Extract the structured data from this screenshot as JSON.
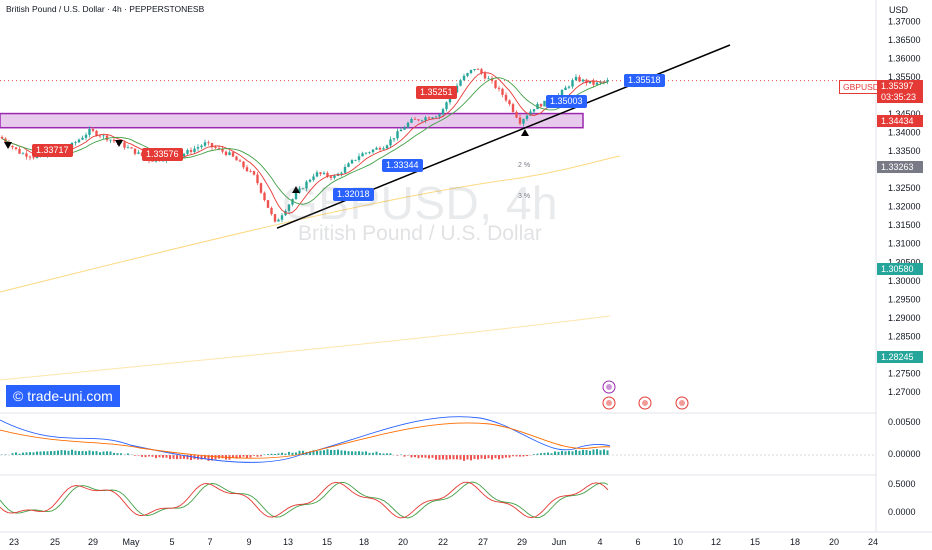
{
  "header": {
    "title": "British Pound / U.S. Dollar · 4h · PEPPERSTONESB",
    "currency": "USD"
  },
  "watermark": {
    "symbol": "GBPUSD, 4h",
    "name": "British Pound / U.S. Dollar"
  },
  "brand": "© trade-uni.com",
  "colors": {
    "up": "#26a69a",
    "down": "#ef5350",
    "accent": "#2962ff",
    "zone": "#9c27b0",
    "ma": "#fbc02d"
  },
  "chart_data": {
    "type": "candlestick",
    "price_axis": {
      "ticks": [
        "1.37000",
        "1.36500",
        "1.36000",
        "1.35500",
        "1.35000",
        "1.34500",
        "1.34000",
        "1.33500",
        "1.33000",
        "1.32500",
        "1.32000",
        "1.31500",
        "1.31000",
        "1.30500",
        "1.30000",
        "1.29500",
        "1.29000",
        "1.28500",
        "1.28000",
        "1.27500",
        "1.27000"
      ],
      "range": [
        1.2665,
        1.3725
      ]
    },
    "price_tags": [
      {
        "symbol": "GBPUSD",
        "price": "1.35397",
        "countdown": "03:35:23",
        "color": "#e53935"
      },
      {
        "price": "1.34434",
        "color": "#e53935"
      },
      {
        "price": "1.33263",
        "color": "#787b86"
      },
      {
        "price": "1.30580",
        "color": "#26a69a"
      },
      {
        "price": "1.28245",
        "color": "#26a69a"
      }
    ],
    "x_ticks": [
      "23",
      "25",
      "29",
      "May",
      "5",
      "7",
      "9",
      "13",
      "15",
      "18",
      "20",
      "22",
      "27",
      "29",
      "Jun",
      "4",
      "6",
      "10",
      "12",
      "15",
      "18",
      "20",
      "24"
    ],
    "annotations": [
      {
        "text": "1.33717",
        "color": "#e53935"
      },
      {
        "text": "1.33576",
        "color": "#e53935"
      },
      {
        "text": "1.32018",
        "color": "#2962ff"
      },
      {
        "text": "1.33344",
        "color": "#2962ff"
      },
      {
        "text": "1.35251",
        "color": "#e53935"
      },
      {
        "text": "1.35003",
        "color": "#2962ff"
      },
      {
        "text": "1.35518",
        "color": "#2962ff"
      }
    ],
    "fib_labels": [
      "2 %",
      "3 %"
    ],
    "key_points": {
      "start_close": 1.3388,
      "low": 1.3142,
      "high": 1.3585,
      "last_close": 1.35397,
      "zone_top": 1.3443,
      "zone_bottom": 1.3421
    },
    "macd": {
      "ticks": [
        "0.00500",
        "0.00000"
      ]
    },
    "stoch": {
      "ticks": [
        "0.5000",
        "0.0000"
      ]
    }
  }
}
